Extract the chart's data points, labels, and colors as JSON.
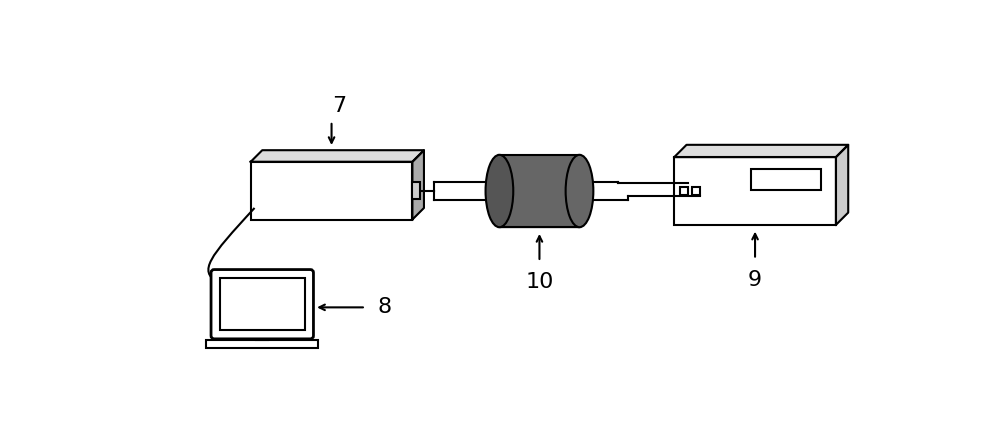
{
  "bg_color": "#ffffff",
  "line_color": "#000000",
  "box7_color": "#ffffff",
  "side_color_dark": "#aaaaaa",
  "side_color_light": "#dddddd",
  "cylinder_body_color": "#666666",
  "cylinder_back_color": "#555555",
  "instrument_color": "#ffffff",
  "instrument_side_color": "#cccccc",
  "instrument_top_color": "#dddddd",
  "label_7": "7",
  "label_8": "8",
  "label_9": "9",
  "label_10": "10",
  "font_size": 16
}
